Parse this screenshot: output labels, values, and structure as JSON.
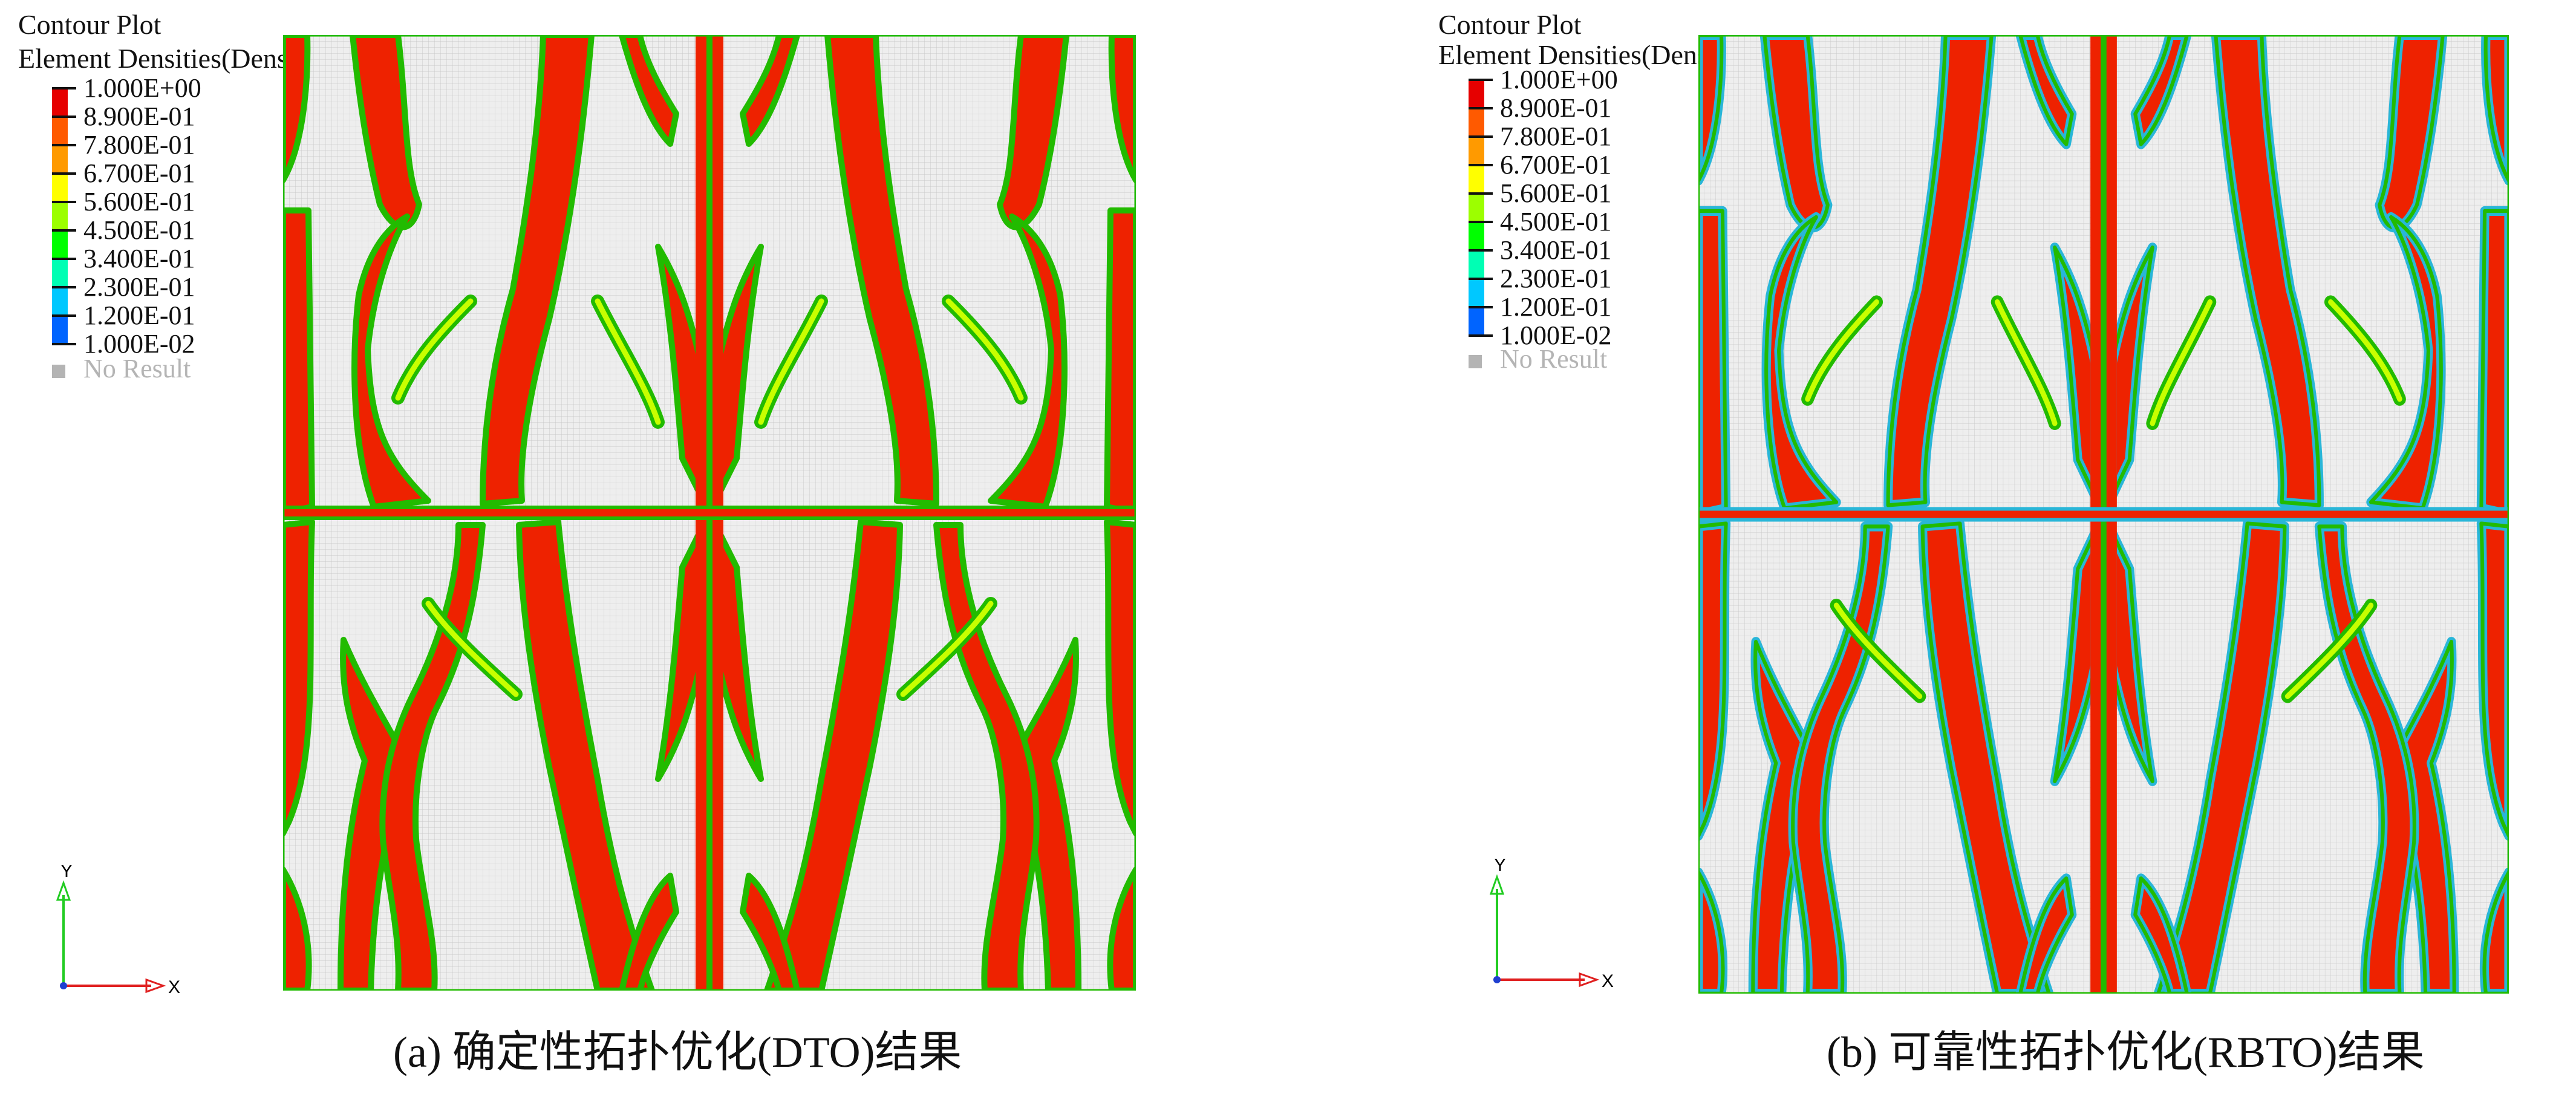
{
  "panels": [
    {
      "id": "a",
      "legend": {
        "title": "Contour Plot",
        "subtitle": "Element Densities(Density)",
        "levels": [
          "1.000E+00",
          "8.900E-01",
          "7.800E-01",
          "6.700E-01",
          "5.600E-01",
          "4.500E-01",
          "3.400E-01",
          "2.300E-01",
          "1.200E-01",
          "1.000E-02"
        ],
        "no_result": "No Result"
      },
      "axes": {
        "y": "Y",
        "x": "X"
      },
      "caption": "(a) 确定性拓扑优化(DTO)结果"
    },
    {
      "id": "b",
      "legend": {
        "title": "Contour Plot",
        "subtitle": "Element Densities(Density)",
        "levels": [
          "1.000E+00",
          "8.900E-01",
          "7.800E-01",
          "6.700E-01",
          "5.600E-01",
          "4.500E-01",
          "3.400E-01",
          "2.300E-01",
          "1.200E-01",
          "1.000E-02"
        ],
        "no_result": "No Result"
      },
      "axes": {
        "y": "Y",
        "x": "X"
      },
      "caption": "(b) 可靠性拓扑优化(RBTO)结果"
    }
  ],
  "colors": {
    "scale": [
      "#e60000",
      "#ff5a00",
      "#ff9a00",
      "#ffff00",
      "#9cff00",
      "#00ff00",
      "#00ffb4",
      "#00c8ff",
      "#0064ff",
      "#0000b4"
    ],
    "solid": "#ee2200",
    "edge_green": "#22bb00",
    "edge_yellow": "#c8ff00",
    "void": "#eeeeee",
    "mesh": "#c9c9c9",
    "cyan": "#29b6d8",
    "no_result": "#b4b4b4"
  }
}
